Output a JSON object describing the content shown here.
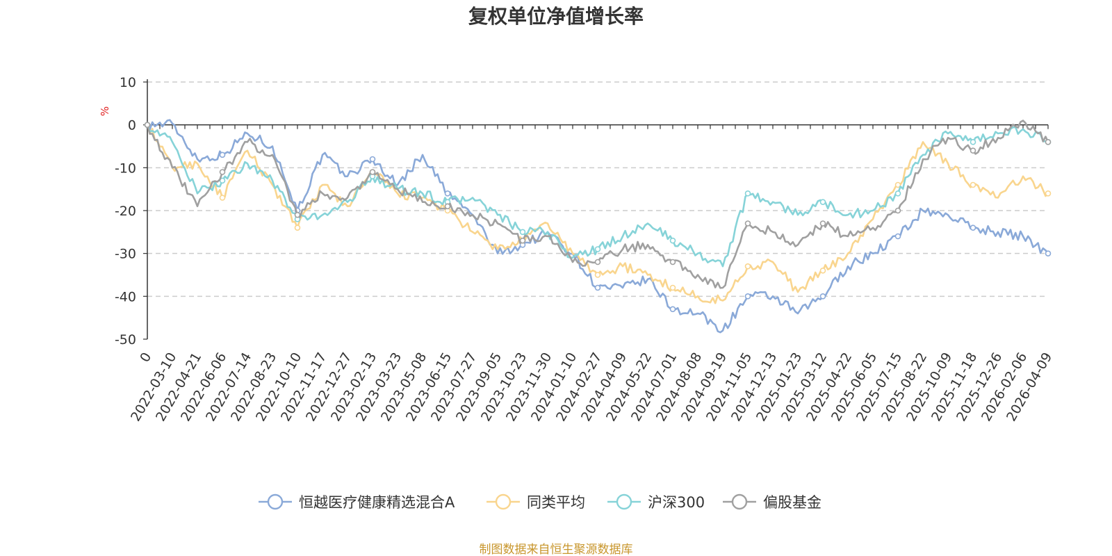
{
  "chart_data": {
    "type": "line",
    "title": "复权单位净值增长率",
    "ylabel": "%",
    "ylim": [
      -50,
      10
    ],
    "yticks": [
      10,
      0,
      -10,
      -20,
      -30,
      -40,
      -50
    ],
    "grid": true,
    "legend_position": "bottom-center",
    "x": [
      "0",
      "2022-03-10",
      "2022-04-21",
      "2022-06-06",
      "2022-07-14",
      "2022-08-23",
      "2022-10-10",
      "2022-11-17",
      "2022-12-27",
      "2023-02-13",
      "2023-03-23",
      "2023-05-08",
      "2023-06-15",
      "2023-07-27",
      "2023-09-05",
      "2023-10-23",
      "2023-11-30",
      "2024-01-10",
      "2024-02-27",
      "2024-04-09",
      "2024-05-22",
      "2024-07-01",
      "2024-08-08",
      "2024-09-19",
      "2024-11-05",
      "2024-12-13",
      "2025-01-23",
      "2025-03-12",
      "2025-04-22",
      "2025-06-05",
      "2025-07-15",
      "2025-08-22",
      "2025-10-09",
      "2025-11-18",
      "2025-12-26",
      "2026-02-06",
      "2026-04-09"
    ],
    "series": [
      {
        "name": "恒越医疗健康精选混合A",
        "color": "#8aa9d8",
        "values": [
          0,
          0.3,
          -8,
          -7,
          -2,
          -5,
          -20,
          -7,
          -12,
          -8,
          -14,
          -7,
          -16,
          -21,
          -30,
          -28,
          -25,
          -30,
          -38,
          -38,
          -36,
          -43,
          -44,
          -48,
          -40,
          -40,
          -44,
          -40,
          -33,
          -30,
          -26,
          -20,
          -21,
          -24,
          -25,
          -26,
          -30
        ]
      },
      {
        "name": "同类平均",
        "color": "#f9d58e",
        "values": [
          0,
          -10,
          -9,
          -17,
          -6,
          -14,
          -24,
          -14,
          -19,
          -11,
          -16,
          -17,
          -20,
          -25,
          -29,
          -27,
          -23,
          -30,
          -35,
          -33,
          -35,
          -38,
          -40,
          -41,
          -33,
          -32,
          -39,
          -34,
          -30,
          -22,
          -14,
          -4,
          -9,
          -14,
          -17,
          -12,
          -16
        ]
      },
      {
        "name": "沪深300",
        "color": "#86d3d8",
        "values": [
          0,
          -4,
          -16,
          -13,
          -9,
          -13,
          -22,
          -21,
          -18,
          -12,
          -15,
          -16,
          -18,
          -17,
          -21,
          -25,
          -25,
          -31,
          -29,
          -26,
          -23,
          -27,
          -30,
          -33,
          -16,
          -18,
          -21,
          -18,
          -21,
          -20,
          -16,
          -7,
          -2,
          -4,
          -2,
          -1,
          -4
        ]
      },
      {
        "name": "偏股基金",
        "color": "#a0a0a0",
        "values": [
          0,
          -10,
          -19,
          -11,
          -4,
          -7,
          -21,
          -16,
          -17,
          -11,
          -15,
          -18,
          -19,
          -21,
          -23,
          -27,
          -26,
          -32,
          -32,
          -29,
          -28,
          -32,
          -35,
          -38,
          -23,
          -25,
          -28,
          -23,
          -26,
          -24,
          -20,
          -8,
          -3,
          -6,
          -3,
          1,
          -4
        ]
      }
    ]
  },
  "source_note": "制图数据来自恒生聚源数据库"
}
